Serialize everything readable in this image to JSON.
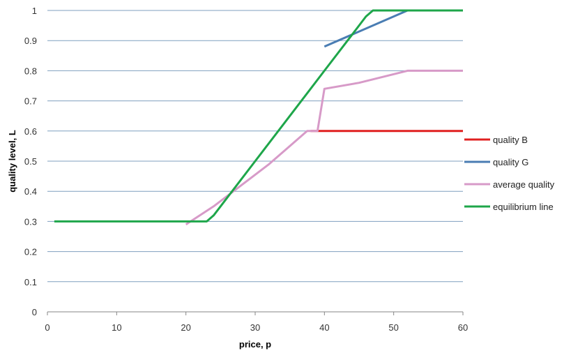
{
  "chart_data": {
    "type": "line",
    "xlabel": "price, p",
    "ylabel": "quality level, L",
    "xlim": [
      0,
      60
    ],
    "ylim": [
      0,
      1
    ],
    "x_ticks": [
      "0",
      "10",
      "20",
      "30",
      "40",
      "50",
      "60"
    ],
    "y_ticks": [
      "0",
      "0.1",
      "0.2",
      "0.3",
      "0.4",
      "0.5",
      "0.6",
      "0.7",
      "0.8",
      "0.9",
      "1"
    ],
    "grid": "horizontal",
    "legend_position": "right",
    "series": [
      {
        "name": "quality B",
        "color": "#e02020",
        "points": [
          [
            38,
            0.6
          ],
          [
            60,
            0.6
          ]
        ]
      },
      {
        "name": "quality G",
        "color": "#4a7db3",
        "points": [
          [
            40,
            0.88
          ],
          [
            52,
            1.0
          ],
          [
            60,
            1.0
          ]
        ]
      },
      {
        "name": "average quality",
        "color": "#d79ac8",
        "points": [
          [
            20,
            0.29
          ],
          [
            24,
            0.35
          ],
          [
            28,
            0.42
          ],
          [
            32,
            0.49
          ],
          [
            35,
            0.55
          ],
          [
            37.5,
            0.6
          ],
          [
            39,
            0.6
          ],
          [
            40,
            0.74
          ],
          [
            45,
            0.76
          ],
          [
            52,
            0.8
          ],
          [
            60,
            0.8
          ]
        ]
      },
      {
        "name": "equilibrium line",
        "color": "#1ea64a",
        "points": [
          [
            1,
            0.3
          ],
          [
            23,
            0.3
          ],
          [
            24,
            0.32
          ],
          [
            26,
            0.38
          ],
          [
            30,
            0.5
          ],
          [
            35,
            0.65
          ],
          [
            40,
            0.8
          ],
          [
            44,
            0.92
          ],
          [
            46,
            0.98
          ],
          [
            47,
            1.0
          ],
          [
            60,
            1.0
          ]
        ]
      }
    ]
  }
}
